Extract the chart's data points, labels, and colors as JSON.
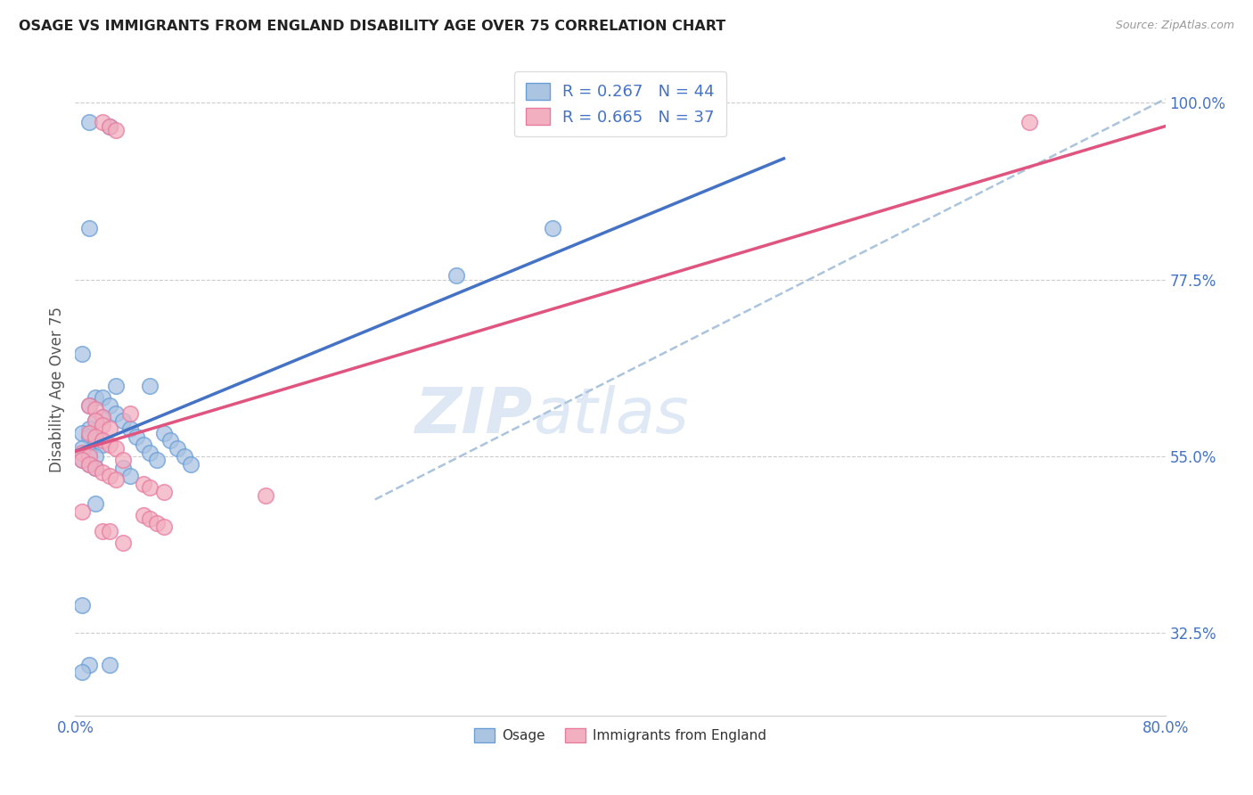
{
  "title": "OSAGE VS IMMIGRANTS FROM ENGLAND DISABILITY AGE OVER 75 CORRELATION CHART",
  "source": "Source: ZipAtlas.com",
  "ylabel": "Disability Age Over 75",
  "xlim": [
    0.0,
    0.8
  ],
  "ylim": [
    0.22,
    1.05
  ],
  "ytick_values": [
    0.325,
    0.55,
    0.775,
    1.0
  ],
  "ytick_labels": [
    "32.5%",
    "55.0%",
    "77.5%",
    "100.0%"
  ],
  "grid_color": "#cccccc",
  "background_color": "#ffffff",
  "watermark_zip": "ZIP",
  "watermark_atlas": "atlas",
  "legend_r1": "R = 0.267",
  "legend_n1": "N = 44",
  "legend_r2": "R = 0.665",
  "legend_n2": "N = 37",
  "osage_color": "#aac4e2",
  "england_color": "#f2afc0",
  "osage_edge_color": "#6a9fd8",
  "england_edge_color": "#e87ca0",
  "osage_line_color": "#4472c4",
  "england_line_color": "#e05580",
  "ref_line_color": "#9dbad8",
  "osage_x": [
    0.01,
    0.025,
    0.01,
    0.03,
    0.005,
    0.015,
    0.01,
    0.02,
    0.015,
    0.01,
    0.005,
    0.01,
    0.015,
    0.02,
    0.005,
    0.01,
    0.015,
    0.005,
    0.01,
    0.015,
    0.02,
    0.025,
    0.03,
    0.035,
    0.04,
    0.045,
    0.05,
    0.055,
    0.06,
    0.035,
    0.04,
    0.055,
    0.065,
    0.07,
    0.075,
    0.08,
    0.085,
    0.015,
    0.005,
    0.01,
    0.28,
    0.005,
    0.35,
    0.025
  ],
  "osage_y": [
    0.975,
    0.97,
    0.84,
    0.64,
    0.68,
    0.625,
    0.615,
    0.6,
    0.595,
    0.585,
    0.58,
    0.575,
    0.57,
    0.565,
    0.56,
    0.555,
    0.55,
    0.545,
    0.54,
    0.535,
    0.625,
    0.615,
    0.605,
    0.595,
    0.585,
    0.575,
    0.565,
    0.555,
    0.545,
    0.535,
    0.525,
    0.64,
    0.58,
    0.57,
    0.56,
    0.55,
    0.54,
    0.49,
    0.36,
    0.285,
    0.78,
    0.275,
    0.84,
    0.285
  ],
  "england_x": [
    0.02,
    0.025,
    0.03,
    0.01,
    0.015,
    0.02,
    0.015,
    0.02,
    0.025,
    0.01,
    0.015,
    0.02,
    0.025,
    0.03,
    0.005,
    0.01,
    0.035,
    0.04,
    0.005,
    0.01,
    0.015,
    0.02,
    0.025,
    0.03,
    0.05,
    0.055,
    0.065,
    0.14,
    0.005,
    0.05,
    0.055,
    0.06,
    0.065,
    0.02,
    0.7,
    0.025,
    0.035
  ],
  "england_y": [
    0.975,
    0.97,
    0.965,
    0.615,
    0.61,
    0.6,
    0.595,
    0.59,
    0.585,
    0.58,
    0.575,
    0.57,
    0.565,
    0.56,
    0.555,
    0.55,
    0.545,
    0.605,
    0.545,
    0.54,
    0.535,
    0.53,
    0.525,
    0.52,
    0.515,
    0.51,
    0.505,
    0.5,
    0.48,
    0.475,
    0.47,
    0.465,
    0.46,
    0.455,
    0.975,
    0.455,
    0.44
  ]
}
